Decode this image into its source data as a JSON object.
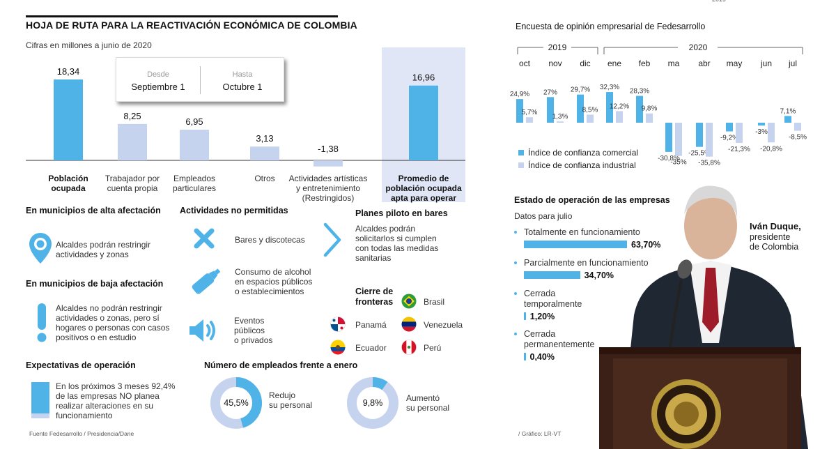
{
  "header": {
    "title": "HOJA DE RUTA PARA LA REACTIVACIÓN ECONÓMICA DE COLOMBIA",
    "subtitle": "Cifras en millones a junio de 2020"
  },
  "period": {
    "from_label": "Desde",
    "from_value": "Septiembre 1",
    "to_label": "Hasta",
    "to_value": "Octubre 1"
  },
  "chart_data": [
    {
      "type": "bar",
      "categories": [
        "Población ocupada",
        "Trabajador por cuenta propia",
        "Empleados particulares",
        "Otros",
        "Actividades artísticas y entretenimiento (Restringidos)",
        "Promedio de población ocupada apta para operar"
      ],
      "values": [
        18.34,
        8.25,
        6.95,
        3.13,
        -1.38,
        16.96
      ],
      "value_labels": [
        "18,34",
        "8,25",
        "6,95",
        "3,13",
        "-1,38",
        "16,96"
      ],
      "label_lines": [
        [
          "Población",
          "ocupada"
        ],
        [
          "Trabajador por",
          "cuenta propia"
        ],
        [
          "Empleados",
          "particulares"
        ],
        [
          "Otros"
        ],
        [
          "Actividades artísticas",
          "y entretenimiento",
          "(Restringidos)"
        ],
        [
          "Promedio de",
          "población ocupada",
          "apta para operar"
        ]
      ],
      "highlight": [
        true,
        false,
        false,
        false,
        false,
        true
      ],
      "colors": {
        "highlight": "#4fb3e8",
        "normal": "#c5d3ef",
        "band": "#e0e6f6"
      }
    },
    {
      "type": "bar",
      "title": "Encuesta de opinión empresarial de Fedesarrollo",
      "years": [
        {
          "label": "2019",
          "span": [
            0,
            2
          ]
        },
        {
          "label": "2020",
          "span": [
            3,
            9
          ]
        }
      ],
      "categories": [
        "oct",
        "nov",
        "dic",
        "ene",
        "feb",
        "ma",
        "abr",
        "may",
        "jun",
        "jul"
      ],
      "series": [
        {
          "name": "Índice de confianza comercial",
          "color": "#4fb3e8",
          "values": [
            24.9,
            27,
            29.7,
            32.3,
            28.3,
            -30.8,
            -25.5,
            -9.2,
            -3,
            7.1
          ],
          "labels": [
            "24,9%",
            "27%",
            "29,7%",
            "32,3%",
            "28,3%",
            "-30,8%",
            "-25,5%",
            "-9,2%",
            "-3%",
            "7,1%"
          ]
        },
        {
          "name": "Índice de confianza industrial",
          "color": "#c5d3ef",
          "values": [
            5.7,
            1.3,
            8.5,
            12.2,
            9.8,
            -35,
            -35.8,
            -21.3,
            -20.8,
            -8.5
          ],
          "labels": [
            "5,7%",
            "1,3%",
            "8,5%",
            "12,2%",
            "9,8%",
            "-35%",
            "-35,8%",
            "-21,3%",
            "-20,8%",
            "-8,5%"
          ]
        }
      ],
      "legend_position": "bottom-left"
    },
    {
      "type": "bar",
      "title": "Estado de operación de las empresas",
      "subtitle": "Datos para julio",
      "categories": [
        [
          "Totalmente en funcionamiento"
        ],
        [
          "Parcialmente en funcionamiento"
        ],
        [
          "Cerrada",
          "temporalmente"
        ],
        [
          "Cerrada",
          "permanentemente"
        ]
      ],
      "values": [
        63.7,
        34.7,
        1.2,
        0.4
      ],
      "value_labels": [
        "63,70%",
        "34,70%",
        "1,20%",
        "0,40%"
      ],
      "color": "#4fb3e8"
    },
    {
      "type": "pie",
      "title": "Número de empleados frente a enero",
      "charts": [
        {
          "value": 45.5,
          "label": "45,5%",
          "text": [
            "Redujo",
            "su personal"
          ]
        },
        {
          "value": 9.8,
          "label": "9,8%",
          "text": [
            "Aumentó",
            "su personal"
          ]
        }
      ],
      "colors": {
        "fill": "#4fb3e8",
        "rest": "#c5d3ef"
      }
    }
  ],
  "alta": {
    "heading": "En municipios de alta afectación",
    "lines": [
      "Alcaldes podrán restringir",
      "actividades y zonas"
    ]
  },
  "baja": {
    "heading": "En municipios de baja afectación",
    "lines": [
      "Alcaldes no podrán restringir",
      "actividades o zonas, pero sí",
      "hogares o personas con casos",
      "positivos o en estudio"
    ]
  },
  "no_permitidas": {
    "heading": "Actividades no permitidas",
    "items": [
      {
        "icon": "x-icon",
        "lines": [
          "Bares y discotecas"
        ]
      },
      {
        "icon": "bottle-icon",
        "lines": [
          "Consumo de alcohol",
          "en espacios públicos",
          "o establecimientos"
        ]
      },
      {
        "icon": "speaker-icon",
        "lines": [
          "Eventos",
          "públicos",
          "o privados"
        ]
      }
    ]
  },
  "piloto": {
    "heading": "Planes piloto en bares",
    "lines": [
      "Alcaldes podrán",
      "solicitarlos si cumplen",
      "con todas las medidas",
      "sanitarias"
    ]
  },
  "fronteras": {
    "heading_lines": [
      "Cierre de",
      "fronteras"
    ],
    "countries": [
      "Brasil",
      "Panamá",
      "Venezuela",
      "Ecuador",
      "Perú"
    ]
  },
  "expectativas": {
    "heading": "Expectativas de operación",
    "lines": [
      "En los próximos 3 meses 92,4%",
      "de las empresas NO planea",
      "realizar alteraciones en su",
      "funcionamiento"
    ]
  },
  "person": {
    "name": "Iván Duque,",
    "role_lines": [
      "presidente",
      "de Colombia"
    ]
  },
  "footer": {
    "source": "Fuente Fedesarrollo / Presidencia/Dane",
    "credit": "/ Gráfico: LR-VT"
  },
  "top_crop": "2019"
}
